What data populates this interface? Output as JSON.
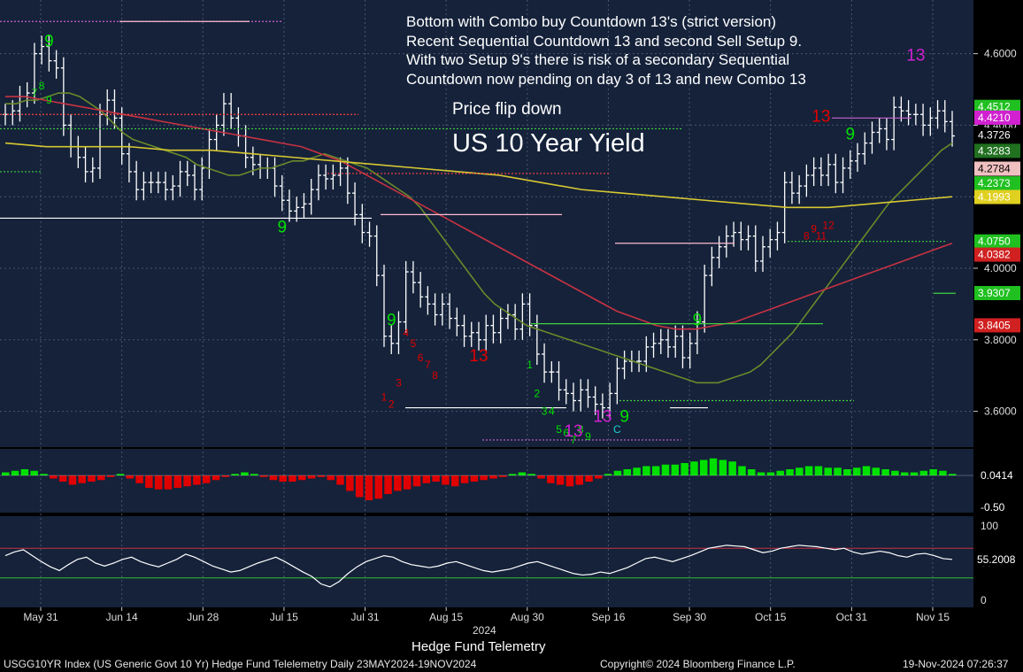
{
  "annotation_lines": [
    "Bottom with Combo buy Countdown 13's (strict version)",
    "Recent Sequential Countdown 13 and second Sell Setup 9.",
    "With two Setup 9's there is risk of a secondary Sequential",
    "Countdown now pending on day 3 of 13 and new Combo 13"
  ],
  "flip_label": "Price flip down",
  "chart_title": "US 10 Year Yield",
  "subtitle": "Hedge Fund Telemetry",
  "year_label": "2024",
  "footer": {
    "left": "USGG10YR Index (US Generic Govt 10 Yr) Hedge Fund Telelemetry  Daily 23MAY2024-19NOV2024",
    "middle": "Copyright© 2024 Bloomberg Finance L.P.",
    "right": "19-Nov-2024 07:26:37"
  },
  "colors": {
    "background": "#1a2438",
    "panel": "#15223a",
    "bull": "#00e000",
    "bear": "#e00000",
    "ma_short": "#6a8a2a",
    "ma_mid": "#c83242",
    "ma_long": "#d8c832",
    "oscillator": "#ffffff"
  },
  "chart_data": {
    "type": "ohlc",
    "x_ticks": [
      "May 31",
      "Jun 14",
      "Jun 28",
      "Jul 15",
      "Jul 31",
      "Aug 15",
      "Aug 30",
      "Sep 16",
      "Sep 30",
      "Oct 15",
      "Oct 31",
      "Nov 15"
    ],
    "price_axis": {
      "ticks": [
        "3.6000",
        "3.8000",
        "4.0000",
        "4.2000",
        "4.4000",
        "4.6000"
      ],
      "ylim": [
        3.5,
        4.75
      ]
    },
    "closes": [
      4.43,
      4.44,
      4.48,
      4.49,
      4.6,
      4.62,
      4.58,
      4.56,
      4.4,
      4.34,
      4.31,
      4.27,
      4.28,
      4.43,
      4.47,
      4.42,
      4.32,
      4.27,
      4.22,
      4.24,
      4.24,
      4.24,
      4.22,
      4.23,
      4.27,
      4.26,
      4.22,
      4.28,
      4.36,
      4.4,
      4.46,
      4.42,
      4.37,
      4.31,
      4.29,
      4.28,
      4.28,
      4.23,
      4.19,
      4.16,
      4.17,
      4.18,
      4.22,
      4.26,
      4.25,
      4.26,
      4.28,
      4.21,
      4.15,
      4.1,
      4.09,
      3.98,
      3.81,
      3.79,
      3.85,
      3.99,
      3.96,
      3.92,
      3.9,
      3.87,
      3.9,
      3.86,
      3.84,
      3.81,
      3.82,
      3.8,
      3.84,
      3.82,
      3.86,
      3.87,
      3.83,
      3.9,
      3.84,
      3.76,
      3.71,
      3.71,
      3.66,
      3.65,
      3.63,
      3.66,
      3.64,
      3.62,
      3.61,
      3.65,
      3.72,
      3.74,
      3.74,
      3.74,
      3.78,
      3.79,
      3.8,
      3.78,
      3.81,
      3.75,
      3.79,
      3.85,
      3.98,
      4.03,
      4.06,
      4.09,
      4.1,
      4.08,
      4.09,
      4.02,
      4.06,
      4.08,
      4.1,
      4.24,
      4.21,
      4.23,
      4.26,
      4.28,
      4.26,
      4.29,
      4.24,
      4.28,
      4.3,
      4.32,
      4.35,
      4.38,
      4.39,
      4.36,
      4.45,
      4.44,
      4.43,
      4.43,
      4.4,
      4.42,
      4.44,
      4.41,
      4.37
    ],
    "series": [
      {
        "name": "MA short",
        "values": [
          4.46,
          4.46,
          4.47,
          4.47,
          4.48,
          4.49,
          4.49,
          4.48,
          4.46,
          4.44,
          4.41,
          4.38,
          4.36,
          4.35,
          4.34,
          4.33,
          4.32,
          4.31,
          4.29,
          4.28,
          4.27,
          4.26,
          4.26,
          4.27,
          4.28,
          4.28,
          4.29,
          4.3,
          4.3,
          4.31,
          4.32,
          4.31,
          4.3,
          4.29,
          4.28,
          4.26,
          4.24,
          4.22,
          4.2,
          4.17,
          4.13,
          4.09,
          4.05,
          4.01,
          3.97,
          3.93,
          3.9,
          3.88,
          3.86,
          3.84,
          3.83,
          3.82,
          3.81,
          3.8,
          3.79,
          3.78,
          3.77,
          3.76,
          3.75,
          3.74,
          3.73,
          3.72,
          3.71,
          3.7,
          3.69,
          3.68,
          3.68,
          3.68,
          3.69,
          3.7,
          3.71,
          3.73,
          3.76,
          3.79,
          3.82,
          3.86,
          3.9,
          3.94,
          3.98,
          4.02,
          4.06,
          4.1,
          4.14,
          4.18,
          4.21,
          4.24,
          4.27,
          4.3,
          4.33,
          4.35
        ]
      },
      {
        "name": "MA mid",
        "values": [
          4.48,
          4.48,
          4.47,
          4.46,
          4.45,
          4.44,
          4.43,
          4.42,
          4.41,
          4.4,
          4.39,
          4.38,
          4.37,
          4.36,
          4.35,
          4.34,
          4.32,
          4.3,
          4.27,
          4.24,
          4.21,
          4.18,
          4.15,
          4.12,
          4.09,
          4.06,
          4.03,
          4.0,
          3.97,
          3.94,
          3.91,
          3.88,
          3.86,
          3.84,
          3.83,
          3.83,
          3.84,
          3.85,
          3.87,
          3.89,
          3.91,
          3.93,
          3.95,
          3.97,
          3.99,
          4.01,
          4.03,
          4.05,
          4.07
        ]
      },
      {
        "name": "MA long",
        "values": [
          4.35,
          4.34,
          4.34,
          4.34,
          4.33,
          4.33,
          4.32,
          4.31,
          4.3,
          4.29,
          4.28,
          4.27,
          4.26,
          4.24,
          4.22,
          4.21,
          4.2,
          4.19,
          4.18,
          4.17,
          4.17,
          4.18,
          4.19,
          4.2
        ]
      }
    ],
    "right_labels": [
      "4.4512",
      "4.4210",
      "4.3726",
      "4.3283",
      "4.2784",
      "4.2373",
      "4.1993",
      "4.0750",
      "4.0382",
      "3.9307",
      "3.8405"
    ],
    "histogram": {
      "ticks": [
        "0.0414",
        "-0.50"
      ],
      "values": [
        0.1,
        0.15,
        0.2,
        0.15,
        0.05,
        -0.1,
        -0.2,
        -0.3,
        -0.25,
        -0.2,
        -0.15,
        -0.05,
        0.05,
        -0.1,
        -0.25,
        -0.4,
        -0.45,
        -0.45,
        -0.4,
        -0.35,
        -0.3,
        -0.25,
        -0.15,
        -0.05,
        0.05,
        0.1,
        0.05,
        -0.05,
        -0.15,
        -0.2,
        -0.2,
        -0.15,
        -0.1,
        -0.05,
        -0.15,
        -0.3,
        -0.5,
        -0.7,
        -0.8,
        -0.75,
        -0.6,
        -0.5,
        -0.45,
        -0.35,
        -0.25,
        -0.2,
        -0.3,
        -0.35,
        -0.25,
        -0.2,
        -0.15,
        -0.1,
        -0.05,
        0.05,
        0.1,
        0.05,
        -0.1,
        -0.25,
        -0.3,
        -0.35,
        -0.3,
        -0.2,
        -0.1,
        0.05,
        0.15,
        0.2,
        0.25,
        0.3,
        0.3,
        0.35,
        0.35,
        0.4,
        0.45,
        0.5,
        0.55,
        0.5,
        0.45,
        0.3,
        0.2,
        0.1,
        0.1,
        0.15,
        0.2,
        0.25,
        0.3,
        0.3,
        0.25,
        0.25,
        0.2,
        0.25,
        0.3,
        0.25,
        0.2,
        0.15,
        0.1,
        0.1,
        0.15,
        0.2,
        0.15,
        0.05
      ]
    },
    "oscillator": {
      "ticks": [
        "100",
        "50",
        "0"
      ],
      "last_label": "55.2008",
      "upper": 70,
      "lower": 30,
      "values": [
        60,
        65,
        68,
        60,
        52,
        45,
        40,
        48,
        55,
        58,
        50,
        46,
        50,
        55,
        58,
        52,
        48,
        45,
        50,
        55,
        62,
        58,
        52,
        46,
        42,
        38,
        40,
        45,
        50,
        54,
        58,
        52,
        45,
        38,
        32,
        22,
        18,
        25,
        36,
        45,
        52,
        56,
        60,
        58,
        52,
        48,
        46,
        44,
        46,
        50,
        52,
        48,
        44,
        40,
        38,
        40,
        42,
        46,
        50,
        52,
        48,
        44,
        40,
        36,
        34,
        35,
        38,
        36,
        40,
        44,
        50,
        56,
        58,
        55,
        52,
        56,
        60,
        65,
        70,
        72,
        74,
        73,
        72,
        68,
        64,
        66,
        70,
        72,
        74,
        73,
        72,
        70,
        68,
        70,
        65,
        62,
        64,
        66,
        64,
        60,
        58,
        62,
        63,
        60,
        56,
        55
      ]
    },
    "setup_counts": {
      "sell_numbers": [
        "7",
        "8",
        "9",
        "1",
        "2",
        "3",
        "4",
        "5",
        "6",
        "7",
        "8",
        "9",
        "13"
      ],
      "buy_numbers": [
        "1",
        "2",
        "3",
        "4",
        "5",
        "6",
        "7",
        "8",
        "9",
        "13",
        "C"
      ]
    }
  }
}
